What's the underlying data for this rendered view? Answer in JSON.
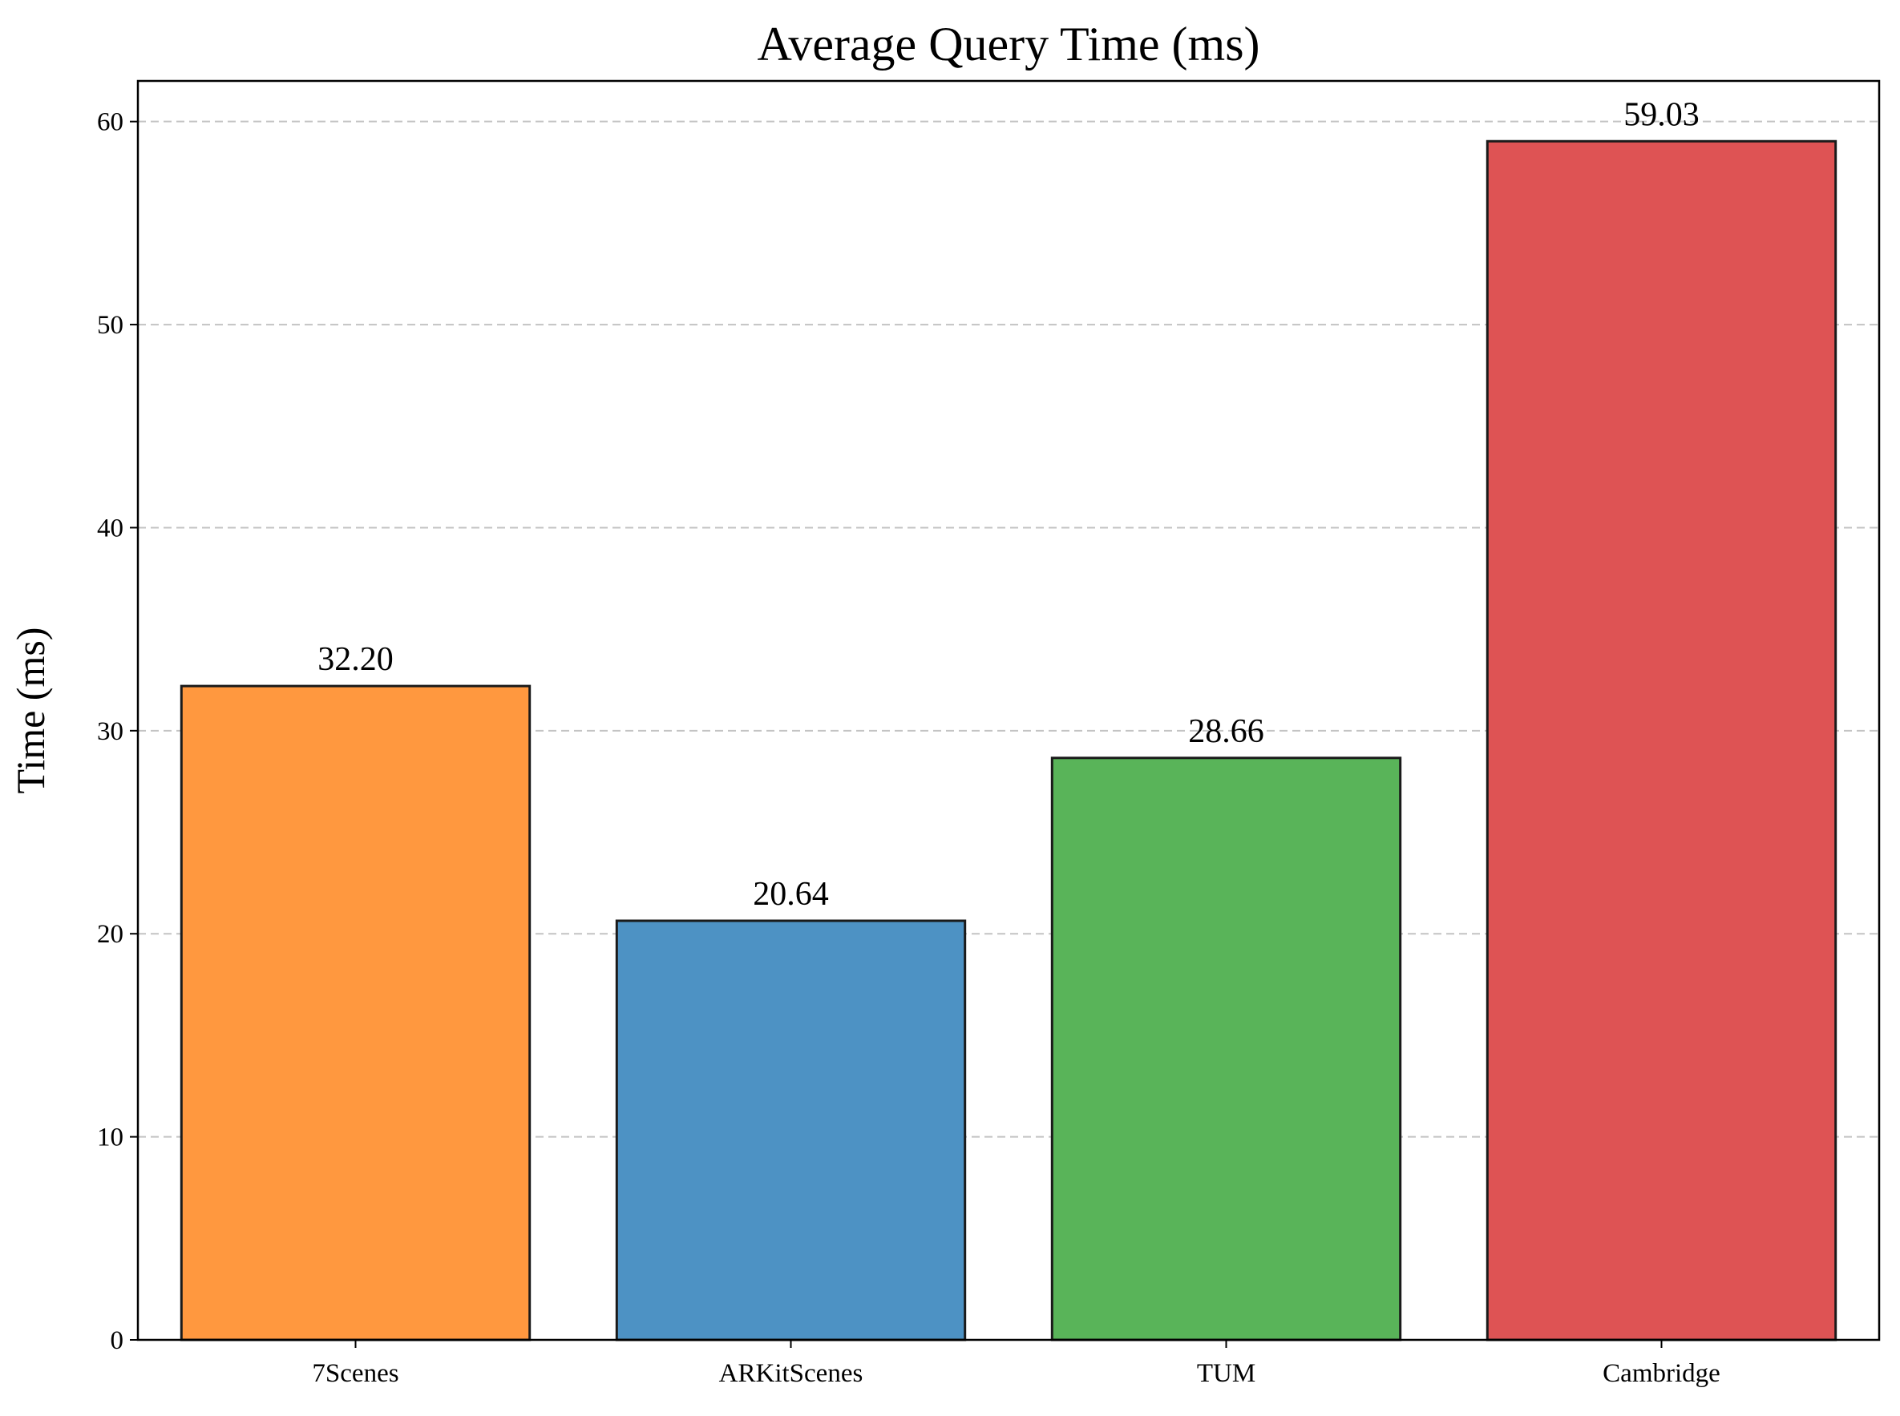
{
  "chart_data": {
    "type": "bar",
    "title": "Average Query Time (ms)",
    "xlabel": "",
    "ylabel": "Time (ms)",
    "categories": [
      "7Scenes",
      "ARKitScenes",
      "TUM",
      "Cambridge"
    ],
    "values": [
      32.2,
      20.64,
      28.66,
      59.03
    ],
    "value_labels": [
      "32.20",
      "20.64",
      "28.66",
      "59.03"
    ],
    "colors": [
      "#ff983f",
      "#4d92c4",
      "#59b459",
      "#de5354"
    ],
    "edge_color": "#1a1a1a",
    "ylim": [
      0,
      62
    ],
    "yticks": [
      0,
      10,
      20,
      30,
      40,
      50,
      60
    ],
    "grid": "y-dashed",
    "legend": "none"
  }
}
